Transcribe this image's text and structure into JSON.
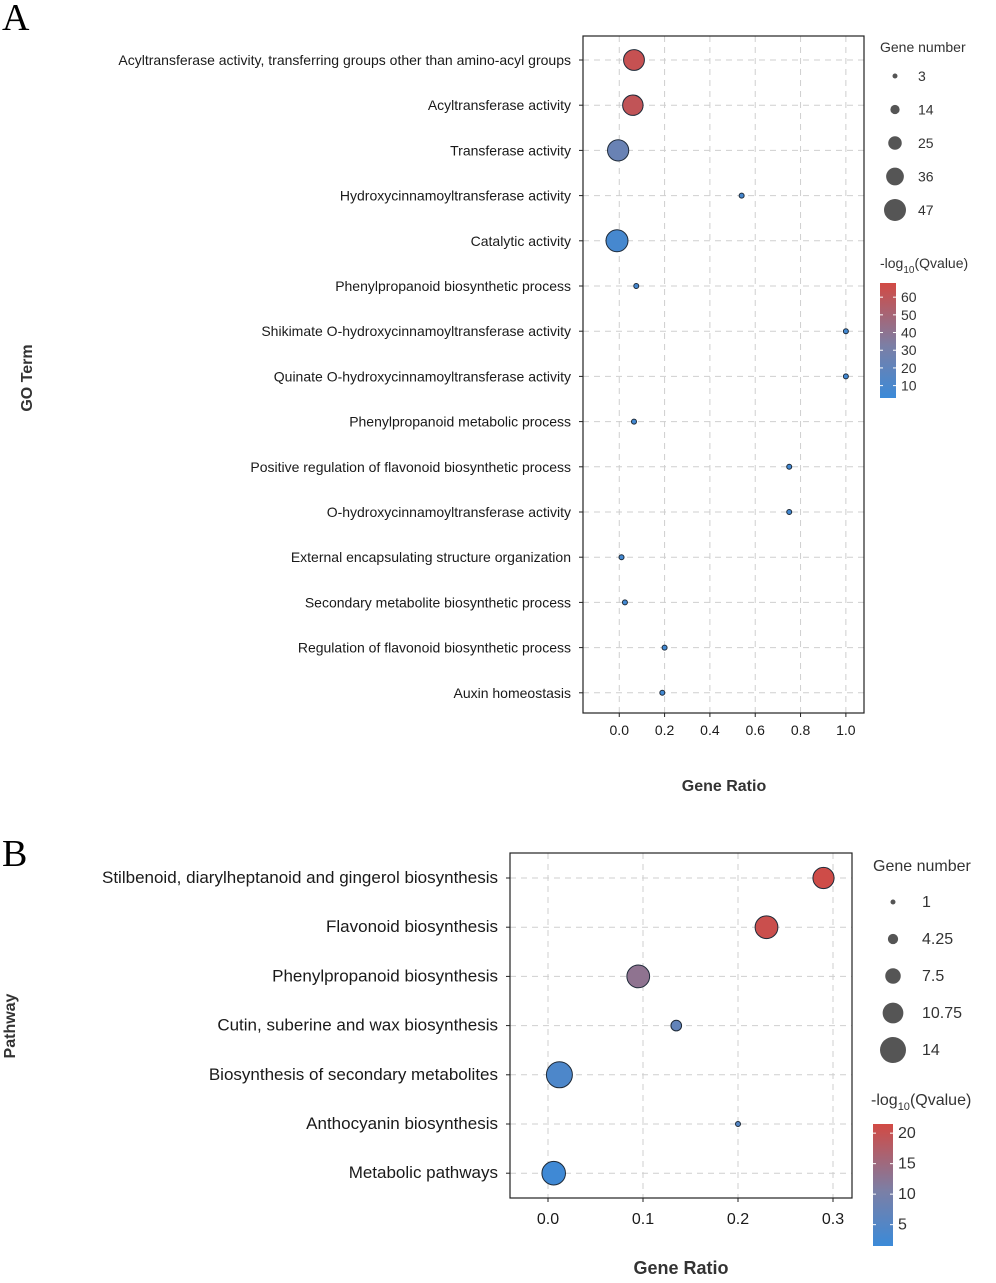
{
  "panels": {
    "a": {
      "letter": "A"
    },
    "b": {
      "letter": "B"
    }
  },
  "chart_data": [
    {
      "type": "scatter",
      "panel": "A",
      "xlabel": "Gene Ratio",
      "ylabel": "GO Term",
      "xlim": [
        -0.16,
        1.08
      ],
      "xticks": [
        "0.0",
        "0.2",
        "0.4",
        "0.6",
        "0.8",
        "1.0"
      ],
      "xtick_values": [
        0.0,
        0.2,
        0.4,
        0.6,
        0.8,
        1.0
      ],
      "terms": [
        "Acyltransferase activity, transferring groups other than amino-acyl groups",
        "Acyltransferase activity",
        "Transferase activity",
        "Hydroxycinnamoyltransferase activity",
        "Catalytic activity",
        "Phenylpropanoid biosynthetic process",
        "Shikimate O-hydroxycinnamoyltransferase activity",
        "Quinate O-hydroxycinnamoyltransferase activity",
        "Phenylpropanoid metabolic process",
        "Positive regulation of flavonoid biosynthetic process",
        "O-hydroxycinnamoyltransferase activity",
        "External encapsulating structure organization",
        "Secondary metabolite biosynthetic process",
        "Regulation of flavonoid biosynthetic process",
        "Auxin homeostasis"
      ],
      "gene_ratio": [
        0.065,
        0.06,
        -0.005,
        0.54,
        -0.01,
        0.075,
        1.0,
        1.0,
        0.065,
        0.75,
        0.75,
        0.01,
        0.025,
        0.2,
        0.19
      ],
      "gene_number": [
        44,
        43,
        45,
        3,
        47,
        3,
        3,
        3,
        3,
        3,
        3,
        3,
        3,
        3,
        3
      ],
      "neg_log10_q": [
        63,
        61,
        24,
        8,
        8,
        8,
        6,
        6,
        6,
        6,
        6,
        6,
        6,
        6,
        6
      ],
      "size_legend": {
        "title": "Gene number",
        "labels": [
          "3",
          "14",
          "25",
          "36",
          "47"
        ],
        "values": [
          3,
          14,
          25,
          36,
          47
        ]
      },
      "color_legend": {
        "title_prefix": "-log",
        "title_sub": "10",
        "title_suffix": "(Qvalue)",
        "labels": [
          "60",
          "50",
          "40",
          "30",
          "20",
          "10"
        ],
        "values": [
          60,
          50,
          40,
          30,
          20,
          10
        ],
        "range": [
          3,
          68
        ]
      },
      "colors": {
        "low": "#3b8ad8",
        "mid": "#7b7fa6",
        "high": "#d24a44"
      }
    },
    {
      "type": "scatter",
      "panel": "B",
      "xlabel": "Gene Ratio",
      "ylabel": "Pathway",
      "xlim": [
        -0.04,
        0.32
      ],
      "xticks": [
        "0.0",
        "0.1",
        "0.2",
        "0.3"
      ],
      "xtick_values": [
        0.0,
        0.1,
        0.2,
        0.3
      ],
      "terms": [
        "Stilbenoid, diarylheptanoid and gingerol biosynthesis",
        "Flavonoid biosynthesis",
        "Phenylpropanoid biosynthesis",
        "Cutin, suberine and wax biosynthesis",
        "Biosynthesis of secondary metabolites",
        "Anthocyanin biosynthesis",
        "Metabolic pathways"
      ],
      "gene_ratio": [
        0.29,
        0.23,
        0.095,
        0.135,
        0.012,
        0.2,
        0.006
      ],
      "gene_number": [
        11,
        12,
        12,
        4.5,
        14,
        1,
        12.5
      ],
      "neg_log10_q": [
        21,
        20.5,
        13,
        7,
        4,
        5,
        2
      ],
      "size_legend": {
        "title": "Gene number",
        "labels": [
          "1",
          "4.25",
          "7.5",
          "10.75",
          "14"
        ],
        "values": [
          1,
          4.25,
          7.5,
          10.75,
          14
        ]
      },
      "color_legend": {
        "title_prefix": "-log",
        "title_sub": "10",
        "title_suffix": "(Qvalue)",
        "labels": [
          "20",
          "15",
          "10",
          "5"
        ],
        "values": [
          20,
          15,
          10,
          5
        ],
        "range": [
          1.5,
          21.5
        ]
      },
      "colors": {
        "low": "#3b8ad8",
        "mid": "#7b7fa6",
        "high": "#d24a44"
      }
    }
  ]
}
